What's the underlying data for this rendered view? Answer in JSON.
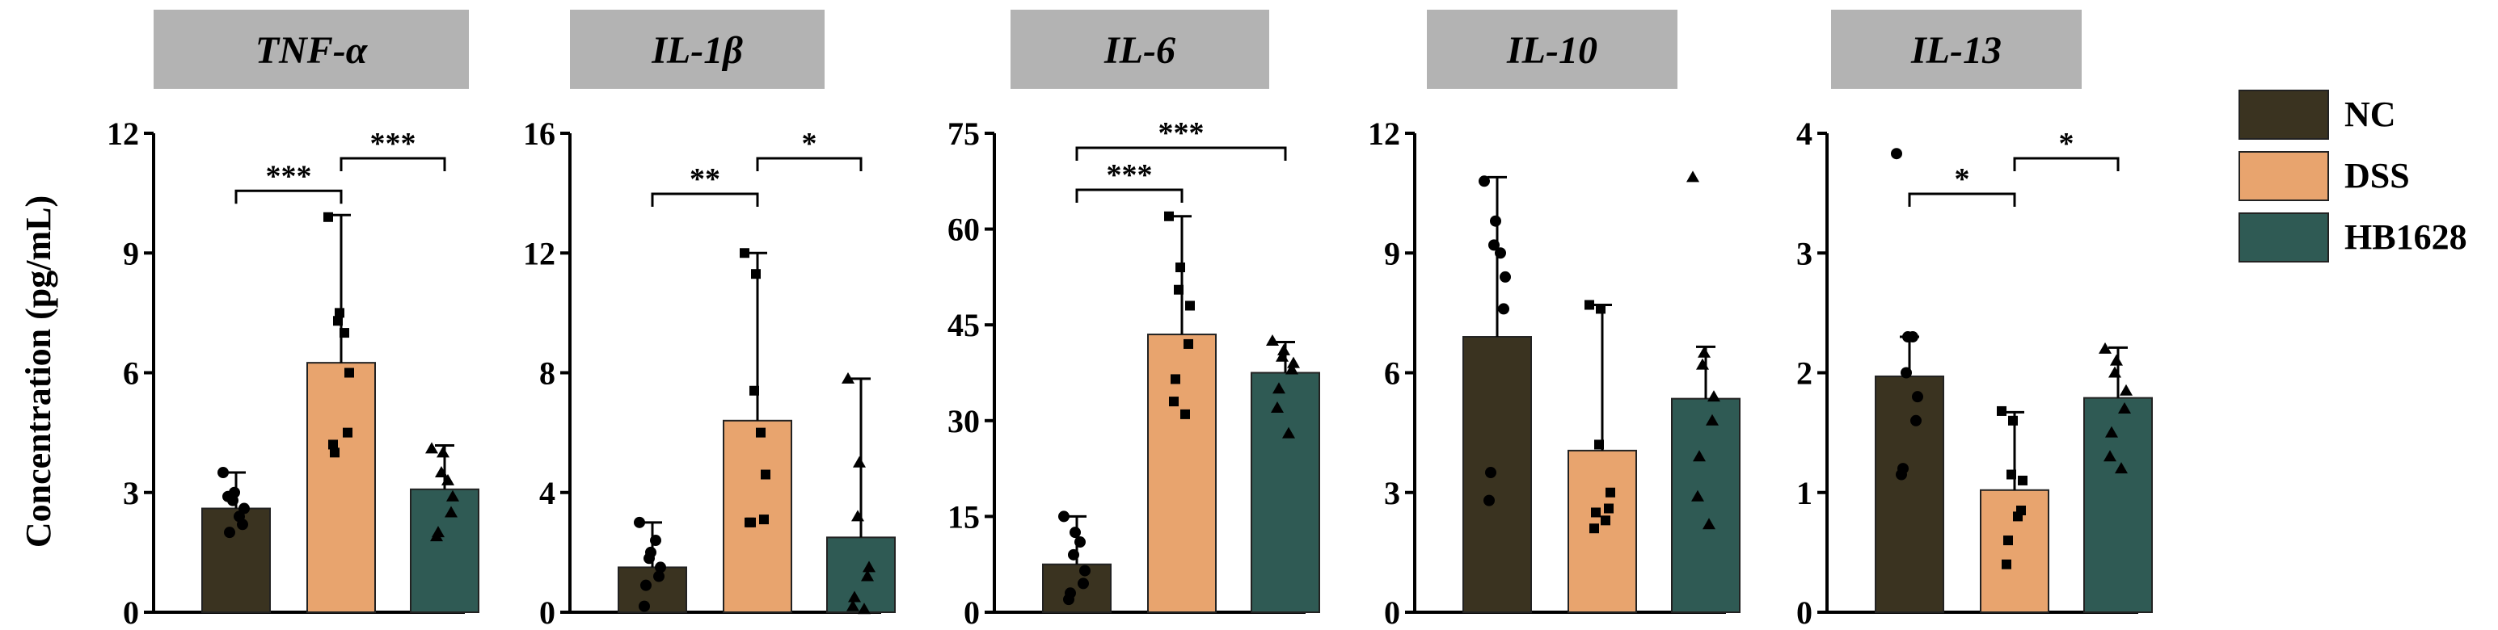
{
  "figure": {
    "ylabel": "Concentration (pg/mL)",
    "legend": [
      {
        "label": "NC",
        "color": "#3a3320"
      },
      {
        "label": "DSS",
        "color": "#e8a46e"
      },
      {
        "label": "HB1628",
        "color": "#2f5a54"
      }
    ]
  },
  "chart_data": [
    {
      "type": "bar",
      "title": "TNF-α",
      "categories": [
        "NC",
        "DSS",
        "HB1628"
      ],
      "values": [
        2.6,
        6.25,
        3.08
      ],
      "errors": [
        0.9,
        3.7,
        1.1
      ],
      "ylim": [
        0,
        12
      ],
      "yticks": [
        0,
        3,
        6,
        9,
        12
      ],
      "points": [
        [
          3.5,
          3.0,
          2.8,
          2.6,
          2.2,
          2.0,
          2.9,
          2.4
        ],
        [
          9.9,
          7.5,
          7.3,
          6.0,
          4.5,
          4.0,
          4.2,
          7.0
        ],
        [
          4.1,
          4.0,
          3.5,
          2.9,
          2.5,
          2.0,
          1.9,
          3.3
        ]
      ],
      "significance": [
        {
          "from": 0,
          "to": 1,
          "label": "***"
        },
        {
          "from": 1,
          "to": 2,
          "label": "***"
        }
      ]
    },
    {
      "type": "bar",
      "title": "IL-1β",
      "categories": [
        "NC",
        "DSS",
        "HB1628"
      ],
      "values": [
        1.5,
        6.4,
        2.5
      ],
      "errors": [
        1.5,
        5.6,
        5.3
      ],
      "ylim": [
        0,
        16
      ],
      "yticks": [
        0,
        4,
        8,
        12,
        16
      ],
      "points": [
        [
          3.0,
          2.0,
          1.8,
          1.5,
          1.2,
          0.9,
          0.2,
          2.4
        ],
        [
          12.0,
          11.3,
          7.4,
          4.6,
          3.1,
          3.0,
          3.0,
          6.0
        ],
        [
          7.8,
          5.0,
          3.2,
          1.5,
          1.2,
          0.5,
          0.2,
          0.1
        ]
      ],
      "significance": [
        {
          "from": 0,
          "to": 1,
          "label": "**"
        },
        {
          "from": 1,
          "to": 2,
          "label": "*"
        }
      ]
    },
    {
      "type": "bar",
      "title": "IL-6",
      "categories": [
        "NC",
        "DSS",
        "HB1628"
      ],
      "values": [
        7.5,
        43.5,
        37.5
      ],
      "errors": [
        7.5,
        18.5,
        4.8
      ],
      "ylim": [
        0,
        75
      ],
      "yticks": [
        0,
        15,
        30,
        45,
        60,
        75
      ],
      "points": [
        [
          15.0,
          12.5,
          9.0,
          6.5,
          4.5,
          3.0,
          2.0,
          11.0
        ],
        [
          62.0,
          54.0,
          50.5,
          48.0,
          42.0,
          36.5,
          33.0,
          31.0
        ],
        [
          42.5,
          41.0,
          40.0,
          39.0,
          38.0,
          35.0,
          32.0,
          28.0
        ]
      ],
      "significance": [
        {
          "from": 0,
          "to": 1,
          "label": "***"
        },
        {
          "from": 0,
          "to": 2,
          "label": "***"
        }
      ]
    },
    {
      "type": "bar",
      "title": "IL-10",
      "categories": [
        "NC",
        "DSS",
        "HB1628"
      ],
      "values": [
        6.9,
        4.05,
        5.35
      ],
      "errors": [
        4.0,
        3.65,
        1.3
      ],
      "ylim": [
        0,
        12
      ],
      "yticks": [
        0,
        3,
        6,
        9,
        12
      ],
      "points": [
        [
          10.8,
          9.8,
          9.2,
          8.4,
          7.6,
          3.5,
          2.8,
          9.0
        ],
        [
          7.7,
          7.6,
          4.2,
          3.0,
          2.6,
          2.5,
          2.1,
          2.3
        ],
        [
          10.9,
          6.5,
          6.2,
          5.4,
          4.8,
          3.9,
          2.9,
          2.2
        ]
      ],
      "significance": []
    },
    {
      "type": "bar",
      "title": "IL-13",
      "categories": [
        "NC",
        "DSS",
        "HB1628"
      ],
      "values": [
        1.97,
        1.02,
        1.79
      ],
      "errors": [
        0.33,
        0.65,
        0.42
      ],
      "ylim": [
        0,
        4
      ],
      "yticks": [
        0,
        1,
        2,
        3,
        4
      ],
      "points": [
        [
          3.83,
          2.3,
          2.0,
          1.8,
          1.6,
          1.2,
          1.15,
          2.3
        ],
        [
          1.68,
          1.6,
          1.15,
          1.1,
          0.85,
          0.6,
          0.4,
          0.8
        ],
        [
          2.2,
          2.1,
          2.0,
          1.85,
          1.7,
          1.5,
          1.3,
          1.2
        ]
      ],
      "significance": [
        {
          "from": 0,
          "to": 1,
          "label": "*"
        },
        {
          "from": 1,
          "to": 2,
          "label": "*"
        }
      ]
    }
  ]
}
